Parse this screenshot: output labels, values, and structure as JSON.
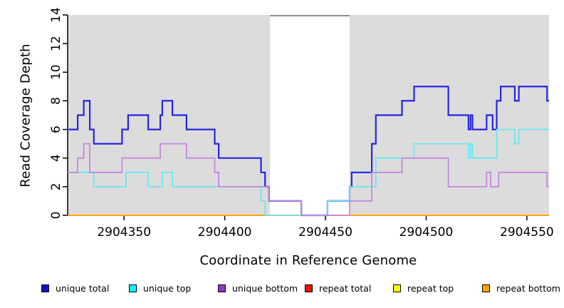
{
  "chart_data": {
    "type": "line",
    "subtype": "step-coverage-plot",
    "title": "",
    "xlabel": "Coordinate in Reference Genome",
    "ylabel": "Read Coverage Depth",
    "xlim": [
      2904322,
      2904561
    ],
    "ylim": [
      0,
      14
    ],
    "xticks": [
      2904350,
      2904400,
      2904450,
      2904500,
      2904550
    ],
    "yticks": [
      0,
      2,
      4,
      6,
      8,
      10,
      12,
      14
    ],
    "grid": false,
    "plot_bg_color": "#dcdcdc",
    "masked_region": {
      "start": 2904422.5,
      "end": 2904462,
      "fill": "#ffffff",
      "top_border_color": "#8c8c8c"
    },
    "series": [
      {
        "name": "repeat total",
        "legend_color": "#ee1111",
        "line_color": "#ee1111",
        "line_width": 1.6,
        "points": [
          [
            2904322,
            0
          ]
        ]
      },
      {
        "name": "repeat top",
        "legend_color": "#ffff00",
        "line_color": "#ffff00",
        "line_width": 1.6,
        "points": [
          [
            2904322,
            0
          ]
        ]
      },
      {
        "name": "repeat bottom",
        "legend_color": "#ffa500",
        "line_color": "#ffa200",
        "line_width": 2,
        "points": [
          [
            2904322,
            0
          ]
        ]
      },
      {
        "name": "unique total",
        "legend_color": "#1111cc",
        "line_color": "#2626de",
        "line_width": 2.2,
        "points": [
          [
            2904322,
            6
          ],
          [
            2904327,
            7
          ],
          [
            2904330,
            8
          ],
          [
            2904333,
            6
          ],
          [
            2904335,
            5
          ],
          [
            2904349,
            6
          ],
          [
            2904352,
            7
          ],
          [
            2904362,
            6
          ],
          [
            2904368,
            7
          ],
          [
            2904369,
            8
          ],
          [
            2904374,
            7
          ],
          [
            2904381,
            6
          ],
          [
            2904395,
            5
          ],
          [
            2904397,
            4
          ],
          [
            2904418,
            3
          ],
          [
            2904420,
            2
          ],
          [
            2904422,
            1
          ],
          [
            2904438,
            0
          ],
          [
            2904451,
            1
          ],
          [
            2904462,
            2
          ],
          [
            2904463,
            3
          ],
          [
            2904473,
            5
          ],
          [
            2904475,
            7
          ],
          [
            2904488,
            8
          ],
          [
            2904494,
            9
          ],
          [
            2904511,
            7
          ],
          [
            2904521,
            6
          ],
          [
            2904522,
            7
          ],
          [
            2904523,
            6
          ],
          [
            2904530,
            7
          ],
          [
            2904533,
            6
          ],
          [
            2904535,
            8
          ],
          [
            2904537,
            9
          ],
          [
            2904544,
            8
          ],
          [
            2904546,
            9
          ],
          [
            2904560,
            8
          ]
        ]
      },
      {
        "name": "unique top",
        "legend_color": "#00ffff",
        "line_color": "#6ee7ec",
        "line_width": 1.8,
        "points": [
          [
            2904322,
            3
          ],
          [
            2904335,
            2
          ],
          [
            2904351,
            3
          ],
          [
            2904362,
            2
          ],
          [
            2904369,
            3
          ],
          [
            2904374,
            2
          ],
          [
            2904418,
            1
          ],
          [
            2904420,
            0
          ],
          [
            2904451,
            1
          ],
          [
            2904462,
            2
          ],
          [
            2904475,
            4
          ],
          [
            2904494,
            5
          ],
          [
            2904521,
            4
          ],
          [
            2904522,
            5
          ],
          [
            2904523,
            4
          ],
          [
            2904535,
            6
          ],
          [
            2904544,
            5
          ],
          [
            2904546,
            6
          ]
        ]
      },
      {
        "name": "unique bottom",
        "legend_color": "#9932cc",
        "line_color": "#c389dd",
        "line_width": 1.8,
        "points": [
          [
            2904322,
            3
          ],
          [
            2904327,
            4
          ],
          [
            2904330,
            5
          ],
          [
            2904333,
            3
          ],
          [
            2904349,
            4
          ],
          [
            2904368,
            5
          ],
          [
            2904381,
            4
          ],
          [
            2904395,
            3
          ],
          [
            2904397,
            2
          ],
          [
            2904422,
            1
          ],
          [
            2904438,
            0
          ],
          [
            2904462,
            1
          ],
          [
            2904473,
            3
          ],
          [
            2904488,
            4
          ],
          [
            2904511,
            2
          ],
          [
            2904530,
            3
          ],
          [
            2904532,
            2
          ],
          [
            2904536,
            3
          ],
          [
            2904560,
            2
          ]
        ]
      }
    ],
    "legend": {
      "position": "bottom",
      "entries": [
        "unique total",
        "unique top",
        "unique bottom",
        "repeat total",
        "repeat top",
        "repeat bottom"
      ]
    }
  }
}
